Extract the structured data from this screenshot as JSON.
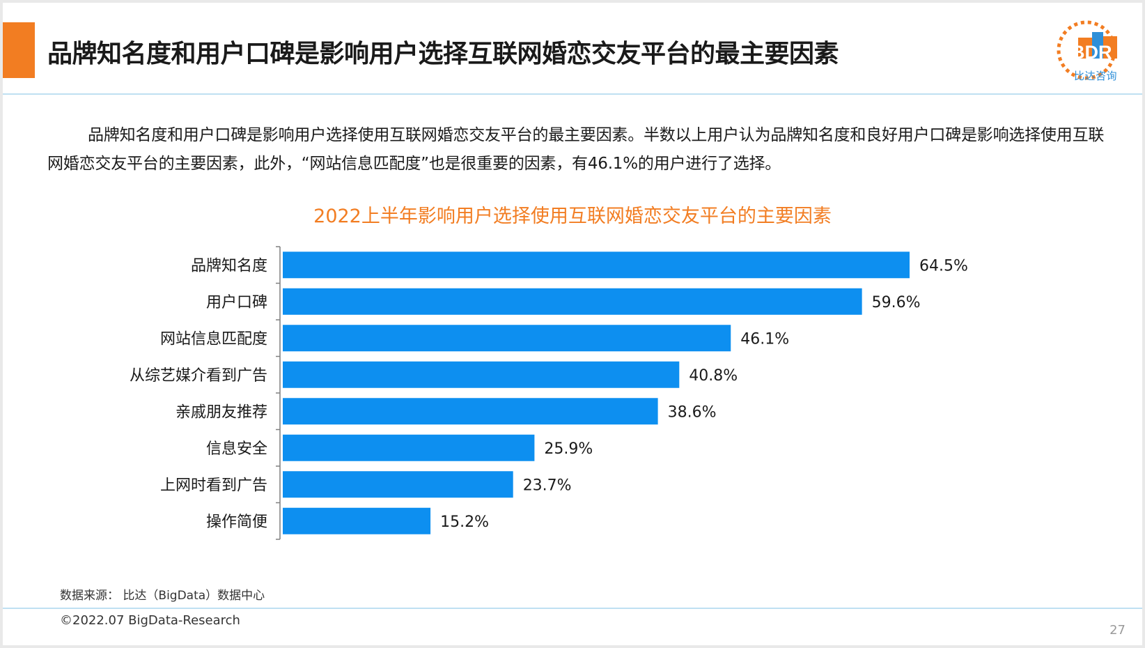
{
  "header": {
    "title": "品牌知名度和用户口碑是影响用户选择互联网婚恋交友平台的最主要因素",
    "logo_text": "比达咨询",
    "logo_letters": "BDR"
  },
  "intro_text": "品牌知名度和用户口碑是影响用户选择使用互联网婚恋交友平台的最主要因素。半数以上用户认为品牌知名度和良好用户口碑是影响选择使用互联网婚恋交友平台的主要因素，此外，“网站信息匹配度”也是很重要的因素，有46.1%的用户进行了选择。",
  "chart_data": {
    "type": "bar",
    "orientation": "horizontal",
    "title": "2022上半年影响用户选择使用互联网婚恋交友平台的主要因素",
    "categories": [
      "品牌知名度",
      "用户口碑",
      "网站信息匹配度",
      "从综艺媒介看到广告",
      "亲戚朋友推荐",
      "信息安全",
      "上网时看到广告",
      "操作简便"
    ],
    "values": [
      64.5,
      59.6,
      46.1,
      40.8,
      38.6,
      25.9,
      23.7,
      15.2
    ],
    "value_labels": [
      "64.5%",
      "59.6%",
      "46.1%",
      "40.8%",
      "38.6%",
      "25.9%",
      "23.7%",
      "15.2%"
    ],
    "unit": "%",
    "xlim": [
      0,
      64.5
    ],
    "bar_color": "#0d8ff0",
    "legend": "none",
    "grid": false
  },
  "source": "数据来源： 比达（BigData）数据中心",
  "copyright": "©2022.07 BigData-Research",
  "page_number": "27",
  "colors": {
    "accent": "#f27d22",
    "brand_blue": "#2e8fd8",
    "divider": "#bfe0f2"
  }
}
